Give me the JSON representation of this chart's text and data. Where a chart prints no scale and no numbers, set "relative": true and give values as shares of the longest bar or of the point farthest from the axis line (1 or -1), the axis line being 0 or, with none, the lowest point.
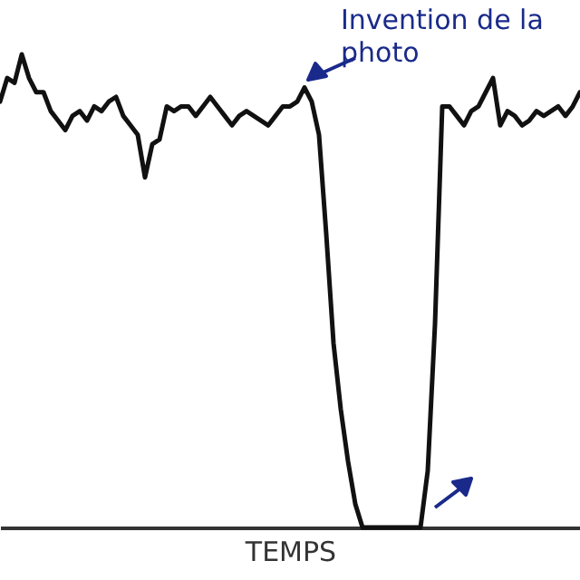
{
  "chart_data": {
    "type": "line",
    "relative": true,
    "xlabel": "TEMPS",
    "tick_labels": false,
    "annotations": [
      "Invention de la photo"
    ],
    "categories": [
      null,
      null,
      null,
      null,
      null,
      null,
      null,
      null,
      null,
      null,
      null,
      null,
      null,
      null,
      null,
      null,
      null,
      null,
      null,
      null,
      null,
      null,
      null,
      null,
      null,
      null,
      null,
      null,
      null,
      null,
      null,
      null,
      null,
      null,
      null,
      null,
      null,
      null,
      null,
      null,
      null,
      null,
      null,
      null,
      null,
      null,
      null,
      null,
      null,
      null,
      null,
      null,
      null,
      null,
      null,
      null,
      null,
      null,
      null,
      null,
      null,
      null,
      null,
      null,
      null,
      null,
      null,
      null,
      null,
      null,
      null,
      null,
      null,
      null,
      null,
      null,
      null,
      null,
      null,
      null,
      null
    ],
    "series": [
      {
        "color": "#111111",
        "values": [
          0.9,
          0.95,
          0.94,
          1.0,
          0.95,
          0.92,
          0.92,
          0.88,
          0.86,
          0.84,
          0.87,
          0.88,
          0.86,
          0.89,
          0.88,
          0.9,
          0.91,
          0.87,
          0.85,
          0.83,
          0.74,
          0.81,
          0.82,
          0.89,
          0.88,
          0.89,
          0.89,
          0.87,
          0.89,
          0.91,
          0.89,
          0.87,
          0.85,
          0.87,
          0.88,
          0.87,
          0.86,
          0.85,
          0.87,
          0.89,
          0.89,
          0.9,
          0.93,
          0.9,
          0.83,
          0.62,
          0.39,
          0.25,
          0.14,
          0.05,
          0,
          0,
          0,
          0,
          0,
          0,
          0,
          0,
          0,
          0.12,
          0.43,
          0.89,
          0.89,
          0.87,
          0.85,
          0.88,
          0.89,
          0.92,
          0.95,
          0.85,
          0.88,
          0.87,
          0.85,
          0.86,
          0.88,
          0.87,
          0.88,
          0.89,
          0.87,
          0.89,
          0.92
        ]
      }
    ]
  }
}
